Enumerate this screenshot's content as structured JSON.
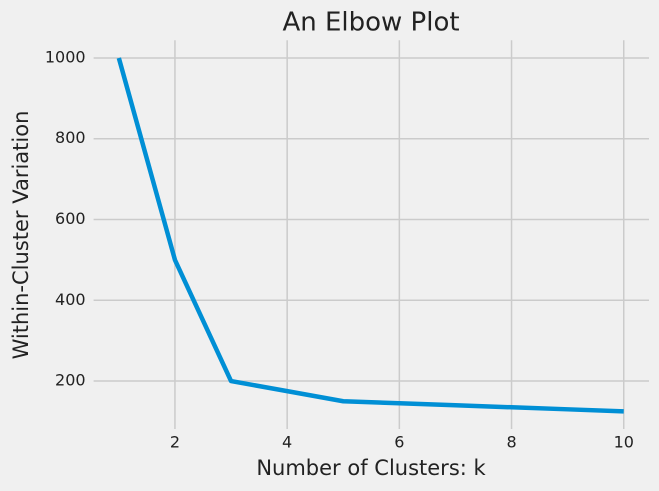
{
  "chart_data": {
    "type": "line",
    "title": "An Elbow Plot",
    "x_label": "Number of Clusters: k",
    "y_label": "Within-Cluster Variation",
    "x": [
      1,
      2,
      3,
      4,
      5,
      6,
      7,
      8,
      9,
      10
    ],
    "values": [
      1000,
      500,
      200,
      175,
      150,
      145,
      140,
      135,
      130,
      125
    ],
    "color": "#008fd5",
    "xlim": [
      0.55,
      10.45
    ],
    "xticks": [
      2,
      4,
      6,
      8,
      10
    ],
    "ylim": [
      81.25,
      1043.75
    ],
    "yticks": [
      200,
      400,
      600,
      800,
      1000
    ],
    "grid": true
  }
}
